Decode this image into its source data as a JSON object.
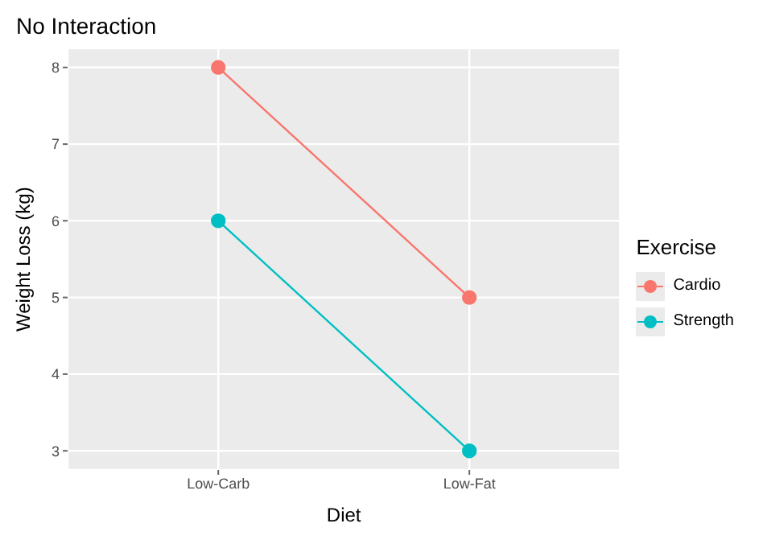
{
  "chart_data": {
    "type": "line",
    "title": "No Interaction",
    "xlabel": "Diet",
    "ylabel": "Weight Loss (kg)",
    "legend_title": "Exercise",
    "categories": [
      "Low-Carb",
      "Low-Fat"
    ],
    "series": [
      {
        "name": "Cardio",
        "color": "#f8766d",
        "values": [
          8,
          5
        ]
      },
      {
        "name": "Strength",
        "color": "#00bfc4",
        "values": [
          6,
          3
        ]
      }
    ],
    "ylim": [
      2.75,
      8.25
    ],
    "yticks": [
      3,
      4,
      5,
      6,
      7,
      8
    ],
    "grid": true,
    "legend": "right",
    "marker": "circle",
    "line_style": "solid"
  }
}
